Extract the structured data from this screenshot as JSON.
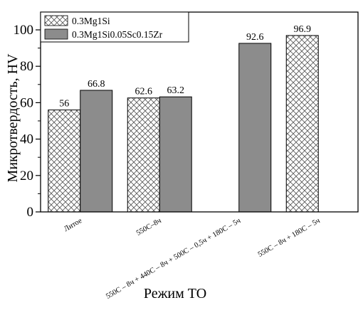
{
  "chart_data": {
    "type": "bar",
    "title": "",
    "xlabel": "Режим ТО",
    "ylabel": "Микротвердость, HV",
    "ylim": [
      0,
      100
    ],
    "yticks": [
      0,
      20,
      40,
      60,
      80,
      100
    ],
    "ytick_labels": [
      "0",
      "20",
      "40",
      "60",
      "80",
      "100"
    ],
    "grid": false,
    "legend_position": "top-left",
    "categories": [
      "Литое",
      "550С–8ч",
      "550С – 8ч + 440С – 8ч + 500С – 0,5ч + 180С – 5ч",
      "550С – 8ч + 180С – 5ч"
    ],
    "series": [
      {
        "name": "0.3Mg1Si",
        "pattern": "crosshatch",
        "color": "#ffffff",
        "values": [
          56,
          62.6,
          null,
          96.9
        ],
        "labels": [
          "56",
          "62.6",
          "",
          "96.9"
        ]
      },
      {
        "name": "0.3Mg1Si0.05Sc0.15Zr",
        "pattern": "solid",
        "color": "#8c8c8c",
        "values": [
          66.8,
          63.2,
          92.6,
          null
        ],
        "labels": [
          "66.8",
          "63.2",
          "92.6",
          ""
        ]
      }
    ]
  }
}
